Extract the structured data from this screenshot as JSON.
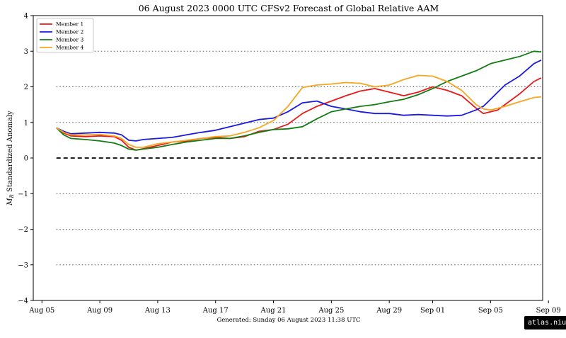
{
  "chart_data": {
    "type": "line",
    "title": "06  August  2023 0000 UTC   CFSv2 Forecast of Global Relative AAM",
    "ylabel": "M_R Standardized Anomaly",
    "ylabel_main": "M",
    "ylabel_sub": "R",
    "ylabel_rest": " Standardized Anomaly",
    "footer": "Generated: Sunday  06  August  2023  11:38 UTC",
    "credit": "atlas.niu.edu",
    "xlim": [
      -0.6,
      34.6
    ],
    "ylim": [
      -4,
      4
    ],
    "x_ticks": [
      {
        "x": 0,
        "label": "Aug 05"
      },
      {
        "x": 4,
        "label": "Aug 09"
      },
      {
        "x": 8,
        "label": "Aug 13"
      },
      {
        "x": 12,
        "label": "Aug 17"
      },
      {
        "x": 16,
        "label": "Aug 21"
      },
      {
        "x": 20,
        "label": "Aug 25"
      },
      {
        "x": 24,
        "label": "Aug 29"
      },
      {
        "x": 27,
        "label": "Sep 01"
      },
      {
        "x": 31,
        "label": "Sep 05"
      },
      {
        "x": 35,
        "label": "Sep 09"
      }
    ],
    "y_ticks": [
      {
        "y": 4,
        "label": "4"
      },
      {
        "y": 3,
        "label": "3"
      },
      {
        "y": 2,
        "label": "2"
      },
      {
        "y": 1,
        "label": "1"
      },
      {
        "y": 0,
        "label": "0"
      },
      {
        "y": -1,
        "label": "−1"
      },
      {
        "y": -2,
        "label": "−2"
      },
      {
        "y": -3,
        "label": "−3"
      },
      {
        "y": -4,
        "label": "−4"
      }
    ],
    "grid": "dotted horizontal at -3,-2,-1,1,2,3; dashed at 0",
    "legend_position": "top-left",
    "series": [
      {
        "name": "Member 1",
        "color": "#e8191b",
        "points": [
          [
            1,
            0.85
          ],
          [
            1.5,
            0.7
          ],
          [
            2,
            0.62
          ],
          [
            3,
            0.6
          ],
          [
            4,
            0.62
          ],
          [
            5,
            0.6
          ],
          [
            5.5,
            0.5
          ],
          [
            6,
            0.3
          ],
          [
            6.5,
            0.22
          ],
          [
            7,
            0.26
          ],
          [
            8,
            0.35
          ],
          [
            9,
            0.45
          ],
          [
            10,
            0.48
          ],
          [
            11,
            0.55
          ],
          [
            12,
            0.58
          ],
          [
            13,
            0.55
          ],
          [
            14,
            0.6
          ],
          [
            15,
            0.75
          ],
          [
            16,
            0.8
          ],
          [
            17,
            0.95
          ],
          [
            18,
            1.25
          ],
          [
            19,
            1.45
          ],
          [
            20,
            1.6
          ],
          [
            21,
            1.75
          ],
          [
            22,
            1.88
          ],
          [
            23,
            1.95
          ],
          [
            24,
            1.85
          ],
          [
            25,
            1.75
          ],
          [
            26,
            1.85
          ],
          [
            27,
            2.0
          ],
          [
            28,
            1.9
          ],
          [
            29,
            1.75
          ],
          [
            30,
            1.4
          ],
          [
            30.5,
            1.25
          ],
          [
            31,
            1.3
          ],
          [
            31.5,
            1.35
          ],
          [
            32,
            1.5
          ],
          [
            33,
            1.8
          ],
          [
            34,
            2.15
          ],
          [
            34.5,
            2.25
          ]
        ]
      },
      {
        "name": "Member 2",
        "color": "#1a1ae0",
        "points": [
          [
            1,
            0.85
          ],
          [
            1.5,
            0.75
          ],
          [
            2,
            0.68
          ],
          [
            3,
            0.7
          ],
          [
            4,
            0.72
          ],
          [
            5,
            0.7
          ],
          [
            5.5,
            0.65
          ],
          [
            6,
            0.5
          ],
          [
            6.5,
            0.48
          ],
          [
            7,
            0.52
          ],
          [
            8,
            0.55
          ],
          [
            9,
            0.58
          ],
          [
            10,
            0.65
          ],
          [
            11,
            0.72
          ],
          [
            12,
            0.78
          ],
          [
            13,
            0.88
          ],
          [
            14,
            0.98
          ],
          [
            15,
            1.08
          ],
          [
            16,
            1.12
          ],
          [
            17,
            1.3
          ],
          [
            18,
            1.55
          ],
          [
            19,
            1.6
          ],
          [
            20,
            1.45
          ],
          [
            21,
            1.38
          ],
          [
            22,
            1.3
          ],
          [
            23,
            1.25
          ],
          [
            24,
            1.25
          ],
          [
            25,
            1.2
          ],
          [
            26,
            1.22
          ],
          [
            27,
            1.2
          ],
          [
            28,
            1.18
          ],
          [
            29,
            1.2
          ],
          [
            30,
            1.35
          ],
          [
            30.5,
            1.45
          ],
          [
            31,
            1.65
          ],
          [
            31.5,
            1.85
          ],
          [
            32,
            2.05
          ],
          [
            33,
            2.3
          ],
          [
            34,
            2.65
          ],
          [
            34.5,
            2.75
          ]
        ]
      },
      {
        "name": "Member 3",
        "color": "#137d13",
        "points": [
          [
            1,
            0.85
          ],
          [
            1.5,
            0.65
          ],
          [
            2,
            0.55
          ],
          [
            3,
            0.52
          ],
          [
            4,
            0.48
          ],
          [
            5,
            0.42
          ],
          [
            5.5,
            0.35
          ],
          [
            6,
            0.25
          ],
          [
            6.5,
            0.22
          ],
          [
            7,
            0.25
          ],
          [
            8,
            0.3
          ],
          [
            9,
            0.38
          ],
          [
            10,
            0.45
          ],
          [
            11,
            0.5
          ],
          [
            12,
            0.55
          ],
          [
            13,
            0.55
          ],
          [
            14,
            0.62
          ],
          [
            15,
            0.72
          ],
          [
            16,
            0.8
          ],
          [
            17,
            0.82
          ],
          [
            18,
            0.88
          ],
          [
            19,
            1.1
          ],
          [
            20,
            1.3
          ],
          [
            21,
            1.38
          ],
          [
            22,
            1.45
          ],
          [
            23,
            1.5
          ],
          [
            24,
            1.58
          ],
          [
            25,
            1.65
          ],
          [
            26,
            1.78
          ],
          [
            27,
            1.95
          ],
          [
            28,
            2.15
          ],
          [
            29,
            2.3
          ],
          [
            30,
            2.45
          ],
          [
            30.5,
            2.55
          ],
          [
            31,
            2.65
          ],
          [
            32,
            2.75
          ],
          [
            33,
            2.85
          ],
          [
            34,
            3.0
          ],
          [
            34.5,
            2.98
          ]
        ]
      },
      {
        "name": "Member 4",
        "color": "#f5a623",
        "points": [
          [
            1,
            0.85
          ],
          [
            1.5,
            0.72
          ],
          [
            2,
            0.65
          ],
          [
            3,
            0.65
          ],
          [
            4,
            0.66
          ],
          [
            5,
            0.62
          ],
          [
            5.5,
            0.55
          ],
          [
            6,
            0.38
          ],
          [
            6.5,
            0.3
          ],
          [
            7,
            0.3
          ],
          [
            8,
            0.4
          ],
          [
            9,
            0.45
          ],
          [
            10,
            0.5
          ],
          [
            11,
            0.55
          ],
          [
            12,
            0.6
          ],
          [
            13,
            0.62
          ],
          [
            14,
            0.72
          ],
          [
            15,
            0.85
          ],
          [
            16,
            1.05
          ],
          [
            17,
            1.45
          ],
          [
            18,
            1.98
          ],
          [
            19,
            2.05
          ],
          [
            20,
            2.08
          ],
          [
            21,
            2.12
          ],
          [
            22,
            2.1
          ],
          [
            23,
            2.0
          ],
          [
            24,
            2.05
          ],
          [
            25,
            2.2
          ],
          [
            26,
            2.32
          ],
          [
            27,
            2.3
          ],
          [
            28,
            2.15
          ],
          [
            29,
            1.9
          ],
          [
            30,
            1.5
          ],
          [
            30.5,
            1.38
          ],
          [
            31,
            1.35
          ],
          [
            32,
            1.45
          ],
          [
            33,
            1.58
          ],
          [
            34,
            1.7
          ],
          [
            34.5,
            1.72
          ]
        ]
      }
    ]
  }
}
